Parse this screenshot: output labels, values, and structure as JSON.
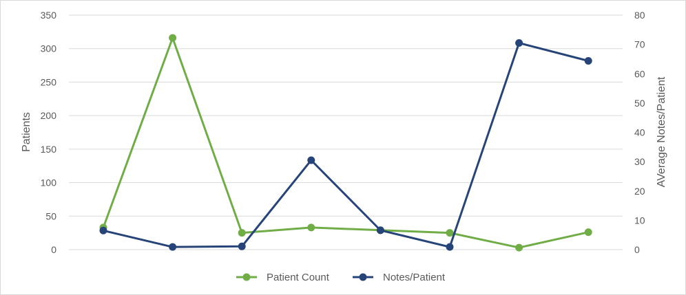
{
  "chart_data": {
    "type": "line",
    "x": [
      1,
      2,
      3,
      4,
      5,
      6,
      7,
      8
    ],
    "ylabel": "Patients",
    "y2label": "AVerage Notes/Patient",
    "ylim": [
      0,
      350
    ],
    "y2lim": [
      0,
      80
    ],
    "yticks": [
      0,
      50,
      100,
      150,
      200,
      250,
      300,
      350
    ],
    "y2ticks": [
      0,
      10,
      20,
      30,
      40,
      50,
      60,
      70,
      80
    ],
    "grid": "horizontal",
    "legend_position": "bottom",
    "series": [
      {
        "name": "Patient Count",
        "axis": "left",
        "color": "#70AD47",
        "values": [
          33,
          316,
          25,
          33,
          29,
          25,
          3,
          26
        ]
      },
      {
        "name": "Notes/Patient",
        "axis": "right",
        "color": "#264478",
        "values": [
          6.5,
          0.9,
          1.1,
          30.5,
          6.6,
          0.9,
          70.5,
          64.4
        ]
      }
    ]
  }
}
